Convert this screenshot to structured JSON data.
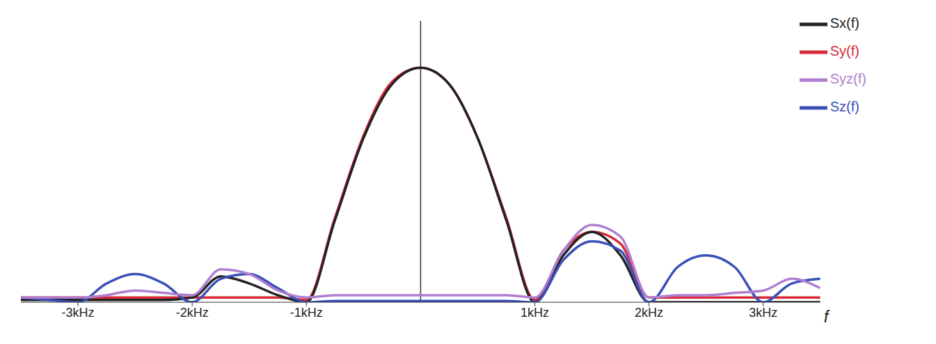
{
  "chart_data": {
    "type": "line",
    "x_label": "f",
    "x": [
      -3.5,
      -3.25,
      -3,
      -2.75,
      -2.5,
      -2.25,
      -2,
      -1.75,
      -1.5,
      -1.25,
      -1,
      -0.75,
      -0.5,
      -0.25,
      0,
      0.25,
      0.5,
      0.75,
      1,
      1.25,
      1.5,
      1.75,
      2,
      2.25,
      2.5,
      2.75,
      3,
      3.25,
      3.5
    ],
    "series": [
      {
        "name": "Sy(f)",
        "color": "#d62a3a",
        "values": [
          0.02,
          0.02,
          0.02,
          0.02,
          0.02,
          0.02,
          0.02,
          0.02,
          0.02,
          0.02,
          0.01,
          0.36,
          0.71,
          0.94,
          1.0,
          0.93,
          0.7,
          0.36,
          0.01,
          0.22,
          0.3,
          0.25,
          0.02,
          0.02,
          0.02,
          0.02,
          0.02,
          0.02,
          0.02
        ]
      },
      {
        "name": "Sx(f)",
        "color": "#222222",
        "values": [
          0.01,
          0.01,
          0.01,
          0.01,
          0.01,
          0.01,
          0.02,
          0.11,
          0.08,
          0.03,
          0.0,
          0.35,
          0.7,
          0.93,
          1.0,
          0.93,
          0.7,
          0.35,
          0.0,
          0.2,
          0.3,
          0.2,
          0.0,
          0.0,
          0.0,
          0.0,
          0.0,
          0.0,
          0.0
        ]
      },
      {
        "name": "Sz(f)",
        "color": "#3a4fb8",
        "values": [
          0.02,
          0.01,
          0.0,
          0.08,
          0.12,
          0.08,
          0.0,
          0.1,
          0.12,
          0.06,
          0.0,
          0.005,
          0.005,
          0.005,
          0.005,
          0.005,
          0.005,
          0.005,
          0.0,
          0.18,
          0.26,
          0.22,
          0.0,
          0.15,
          0.2,
          0.15,
          0.0,
          0.08,
          0.1
        ]
      },
      {
        "name": "Syz(f)",
        "color": "#b07fcf",
        "values": [
          0.02,
          0.02,
          0.02,
          0.03,
          0.05,
          0.04,
          0.03,
          0.14,
          0.12,
          0.05,
          0.02,
          0.03,
          0.03,
          0.03,
          0.03,
          0.03,
          0.03,
          0.03,
          0.02,
          0.22,
          0.33,
          0.28,
          0.02,
          0.03,
          0.03,
          0.04,
          0.05,
          0.1,
          0.06
        ]
      }
    ],
    "xlim": [
      -3.5,
      3.5
    ],
    "xticks": [
      {
        "value": -3,
        "label": "-3kHz"
      },
      {
        "value": -2,
        "label": "-2kHz"
      },
      {
        "value": -1,
        "label": "-1kHz"
      },
      {
        "value": 1,
        "label": "1kHz"
      },
      {
        "value": 2,
        "label": "2kHz"
      },
      {
        "value": 3,
        "label": "3kHz"
      }
    ],
    "ylim": [
      0,
      1.2
    ],
    "tick_labels": "x",
    "grid": false,
    "legend": "top-right"
  }
}
